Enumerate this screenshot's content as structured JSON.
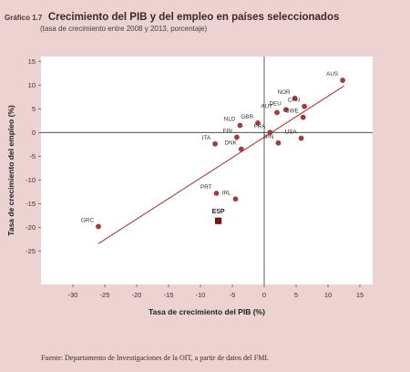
{
  "header": {
    "figure_number": "Gráfico 1.7",
    "title": "Crecimiento del PIB y del empleo en países seleccionados",
    "subtitle": "(tasa de crecimiento entre 2008 y 2013, porcentaje)"
  },
  "source": "Fuente: Departamento de Investigaciones de la OIT, a partir de datos del FMI.",
  "colors": {
    "point": "#a33b3f",
    "highlight": "#7a1018",
    "trendline": "#a33b3f",
    "plot_bg": "#ffffff",
    "page_bg": "#ecd3d2"
  },
  "chart_data": {
    "type": "scatter",
    "xlabel": "Tasa de crecimiento del PIB (%)",
    "ylabel": "Tasa de crecimiento del empleo (%)",
    "xlim": [
      -35,
      17
    ],
    "ylim": [
      -32,
      16
    ],
    "x_ticks": [
      -30,
      -25,
      -20,
      -15,
      -10,
      -5,
      0,
      5,
      10,
      15
    ],
    "y_ticks": [
      15,
      10,
      5,
      0,
      -5,
      -10,
      -15,
      -20,
      -25
    ],
    "grid": false,
    "points": [
      {
        "label": "AUS",
        "x": 12.3,
        "y": 11.0
      },
      {
        "label": "NOR",
        "x": 4.8,
        "y": 7.2
      },
      {
        "label": "CAN",
        "x": 6.3,
        "y": 5.5
      },
      {
        "label": "AUT",
        "x": 2.0,
        "y": 4.2
      },
      {
        "label": "DEU",
        "x": 3.4,
        "y": 4.8
      },
      {
        "label": "SWE",
        "x": 6.1,
        "y": 3.2
      },
      {
        "label": "NLD",
        "x": -3.8,
        "y": 1.5
      },
      {
        "label": "GBR",
        "x": -1.0,
        "y": 2.0
      },
      {
        "label": "FRA",
        "x": 0.9,
        "y": 0.0
      },
      {
        "label": "FIN",
        "x": -4.3,
        "y": -1.0
      },
      {
        "label": "ITA",
        "x": -7.7,
        "y": -2.4
      },
      {
        "label": "USA",
        "x": 5.8,
        "y": -1.2
      },
      {
        "label": "JPN",
        "x": 2.2,
        "y": -2.2
      },
      {
        "label": "DNK",
        "x": -3.6,
        "y": -3.5
      },
      {
        "label": "PRT",
        "x": -7.5,
        "y": -12.8
      },
      {
        "label": "IRL",
        "x": -4.5,
        "y": -14.0
      },
      {
        "label": "GRC",
        "x": -26.0,
        "y": -19.8
      }
    ],
    "highlight": {
      "label": "ESP",
      "x": -7.2,
      "y": -18.6
    },
    "trendline": {
      "x": [
        -26,
        12.5
      ],
      "y": [
        -23.4,
        9.8
      ]
    }
  }
}
